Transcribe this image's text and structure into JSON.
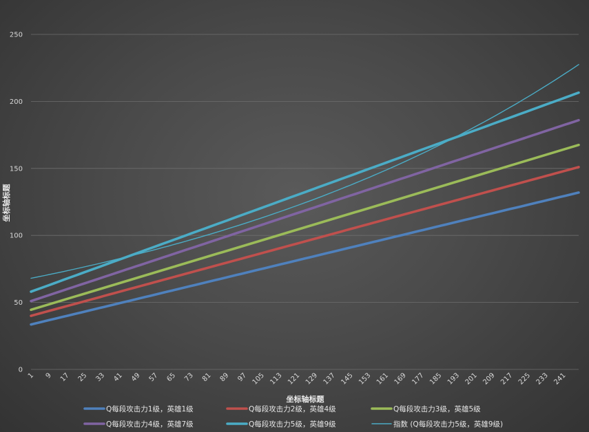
{
  "chart_data": {
    "type": "line",
    "title": "",
    "xlabel": "坐标轴标题",
    "ylabel": "坐标轴标题",
    "x_range": [
      1,
      248
    ],
    "x_tick_labels": [
      "1",
      "9",
      "17",
      "25",
      "33",
      "41",
      "49",
      "57",
      "65",
      "73",
      "81",
      "89",
      "97",
      "105",
      "113",
      "121",
      "129",
      "137",
      "145",
      "153",
      "161",
      "169",
      "177",
      "185",
      "193",
      "201",
      "209",
      "217",
      "225",
      "233",
      "241"
    ],
    "ylim": [
      0,
      250
    ],
    "y_ticks": [
      0,
      50,
      100,
      150,
      200,
      250
    ],
    "grid": "horizontal",
    "legend_position": "bottom",
    "series": [
      {
        "name": "Q每段攻击力1级，英雄1级",
        "color": "#4f81bd",
        "line": "thick",
        "start": 33.5,
        "end": 132
      },
      {
        "name": "Q每段攻击力2级，英雄4级",
        "color": "#c0504d",
        "line": "thick",
        "start": 40,
        "end": 151
      },
      {
        "name": "Q每段攻击力3级，英雄5级",
        "color": "#9bbb59",
        "line": "thick",
        "start": 44.5,
        "end": 167.5
      },
      {
        "name": "Q每段攻击力4级，英雄7级",
        "color": "#8064a2",
        "line": "thick",
        "start": 51,
        "end": 186
      },
      {
        "name": "Q每段攻击力5级，英雄9级",
        "color": "#4bacc6",
        "line": "thick",
        "start": 58,
        "end": 206.5
      },
      {
        "name": "指数 (Q每段攻击力5级，英雄9级)",
        "color": "#4bacc6",
        "line": "thin",
        "trend": "exponential",
        "start": 68,
        "end": 227.5
      }
    ]
  }
}
